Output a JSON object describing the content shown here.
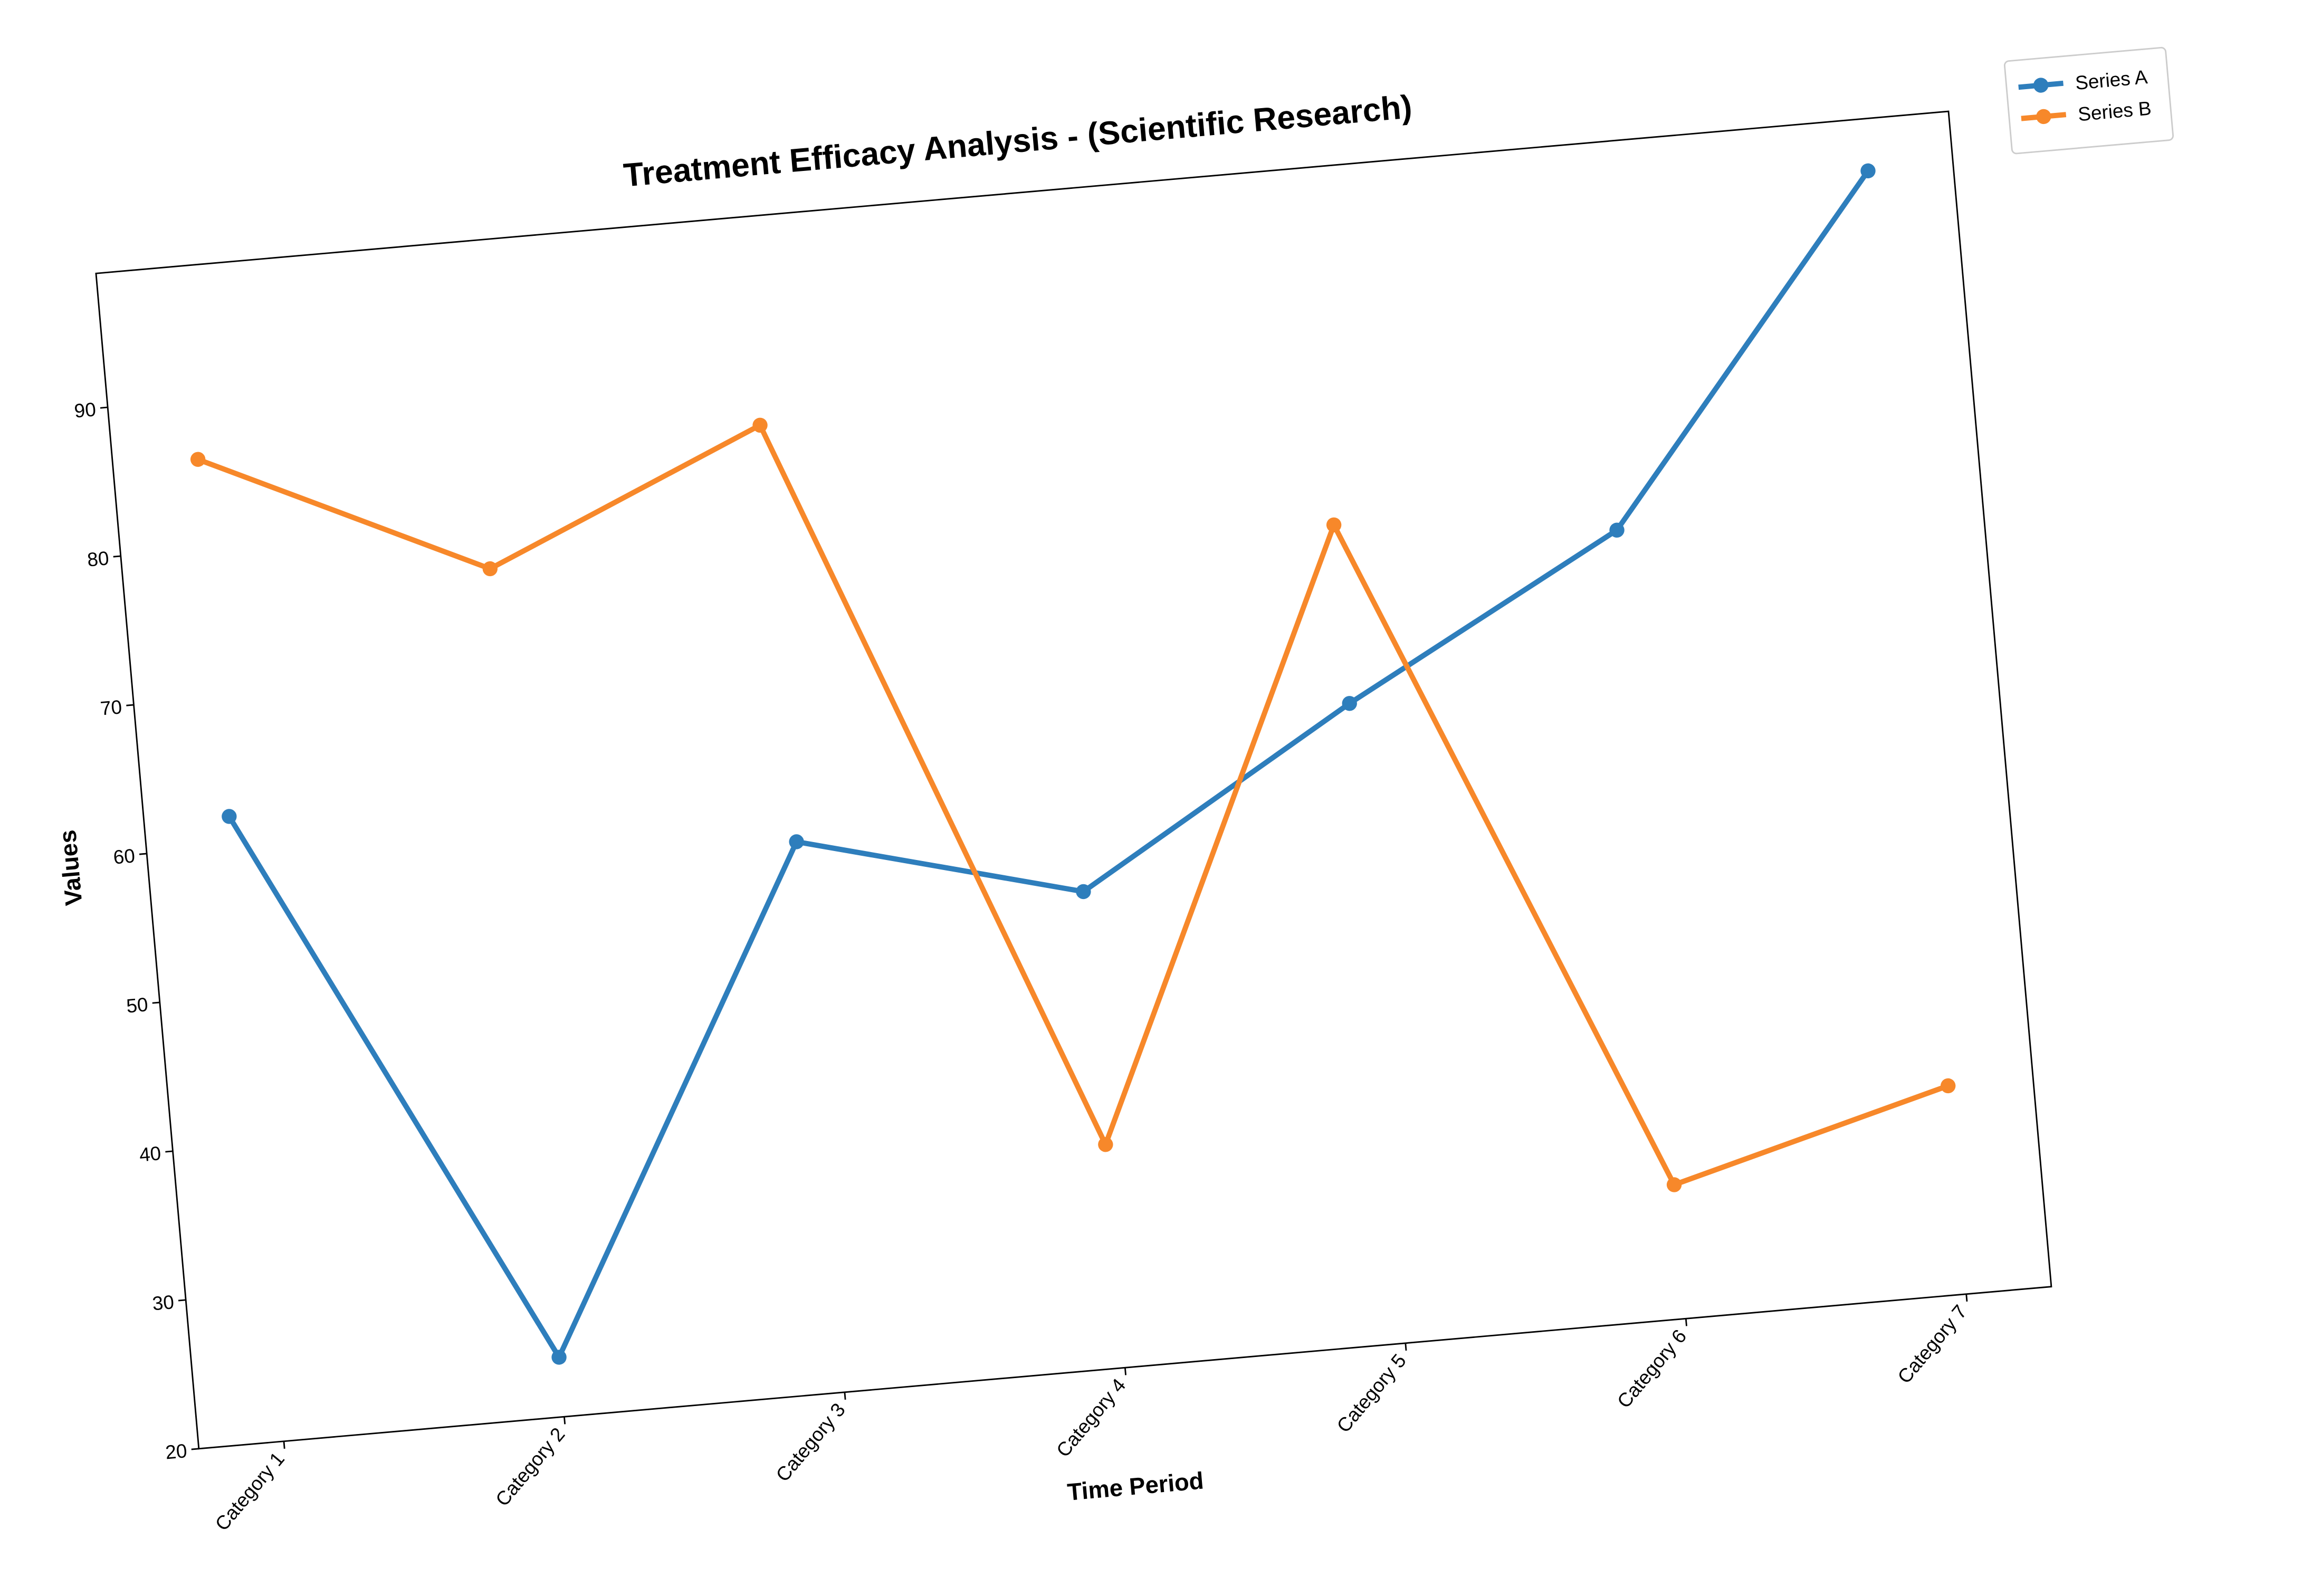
{
  "chart_data": {
    "type": "line",
    "title": "Treatment Efficacy Analysis - (Scientific Research)",
    "x_label": "Time Period",
    "y_label": "Values",
    "categories": [
      "Category 1",
      "Category 2",
      "Category 3",
      "Category 4",
      "Category 5",
      "Category 6",
      "Category 7"
    ],
    "series": [
      {
        "name": "Series A",
        "color": "#2e7ebc",
        "values": [
          62,
          24,
          57,
          52,
          63,
          73,
          95.5
        ]
      },
      {
        "name": "Series B",
        "color": "#f7882a",
        "values": [
          86,
          77,
          85,
          35,
          75,
          29,
          34
        ]
      }
    ],
    "ylim": [
      20,
      99
    ],
    "yticks": [
      20,
      30,
      40,
      50,
      60,
      70,
      80,
      90
    ],
    "legend": "upper-right-outside"
  }
}
